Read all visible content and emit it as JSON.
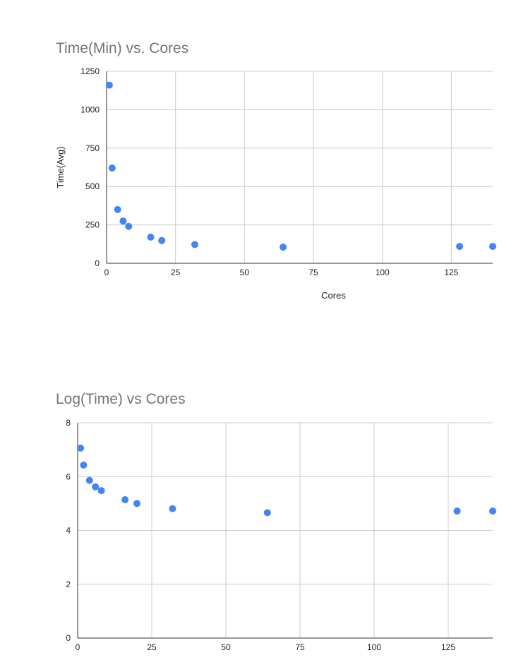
{
  "chart_data": [
    {
      "type": "scatter",
      "title": "Time(Min) vs. Cores",
      "xlabel": "Cores",
      "ylabel": "Time(Avg)",
      "xlim": [
        0,
        140
      ],
      "ylim": [
        0,
        1250
      ],
      "xticks": [
        0,
        25,
        50,
        75,
        100,
        125
      ],
      "yticks": [
        0,
        250,
        500,
        750,
        1000,
        1250
      ],
      "grid": true,
      "color": "#4285f4",
      "x": [
        1,
        2,
        4,
        6,
        8,
        16,
        20,
        32,
        64,
        128,
        140
      ],
      "y": [
        1160,
        620,
        350,
        275,
        240,
        170,
        148,
        122,
        105,
        110,
        110
      ]
    },
    {
      "type": "scatter",
      "title": "Log(Time) vs Cores",
      "xlabel": "",
      "ylabel": "",
      "xlim": [
        0,
        140
      ],
      "ylim": [
        0,
        8
      ],
      "xticks": [
        0,
        25,
        50,
        75,
        100,
        125
      ],
      "yticks": [
        0,
        2,
        4,
        6,
        8
      ],
      "grid": true,
      "color": "#4285f4",
      "x": [
        1,
        2,
        4,
        6,
        8,
        16,
        20,
        32,
        64,
        128,
        140
      ],
      "y": [
        7.06,
        6.43,
        5.86,
        5.62,
        5.48,
        5.14,
        5.0,
        4.81,
        4.66,
        4.72,
        4.72
      ]
    }
  ]
}
